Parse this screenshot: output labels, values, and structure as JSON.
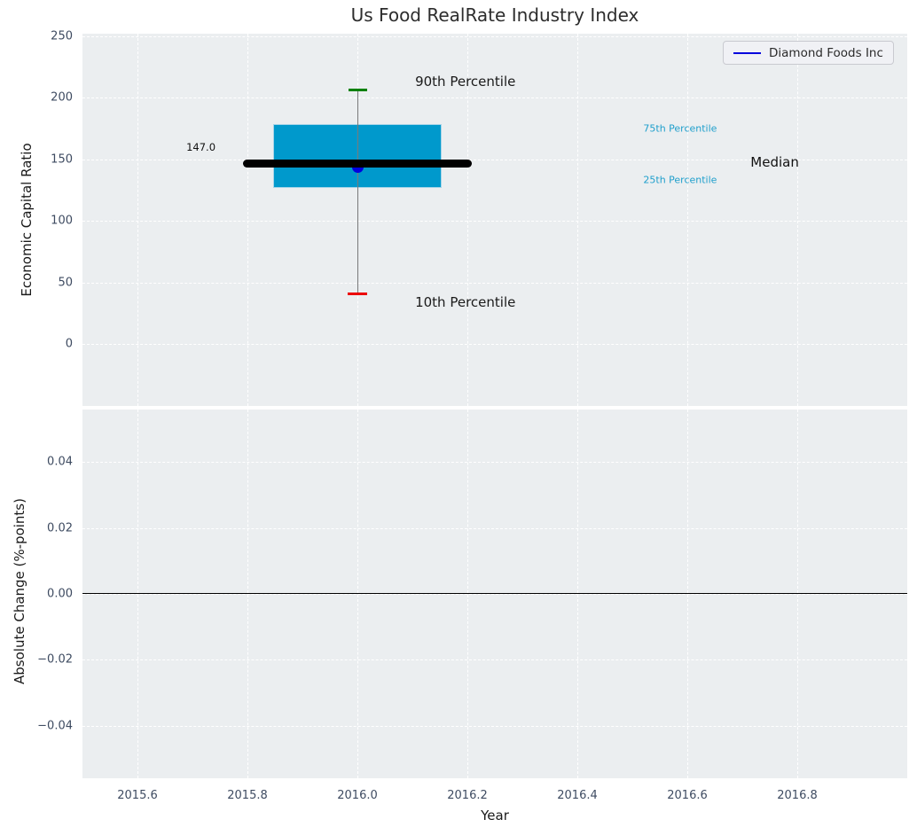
{
  "chart_data": [
    {
      "type": "box",
      "title": "Us Food RealRate Industry Index",
      "xlabel": "Year",
      "ylabel": "Economic Capital Ratio",
      "legend": [
        {
          "label": "Diamond Foods Inc",
          "color": "#0000dd"
        }
      ],
      "legend_position": "upper right",
      "x": 2016.0,
      "box": {
        "p90": 206,
        "p75": 179,
        "median": 147.0,
        "p25": 127,
        "p10": 41
      },
      "company": {
        "name": "Diamond Foods Inc",
        "value": 144
      },
      "xlim": [
        2015.5,
        2017.0
      ],
      "ylim": [
        -50,
        252
      ],
      "xticks": [
        {
          "value": 2015.6,
          "label": "2015.6"
        },
        {
          "value": 2015.8,
          "label": "2015.8"
        },
        {
          "value": 2016.0,
          "label": "2016.0"
        },
        {
          "value": 2016.2,
          "label": "2016.2"
        },
        {
          "value": 2016.4,
          "label": "2016.4"
        },
        {
          "value": 2016.6,
          "label": "2016.6"
        },
        {
          "value": 2016.8,
          "label": "2016.8"
        }
      ],
      "yticks": [
        {
          "value": 0,
          "label": "0"
        },
        {
          "value": 50,
          "label": "50"
        },
        {
          "value": 100,
          "label": "100"
        },
        {
          "value": 150,
          "label": "150"
        },
        {
          "value": 200,
          "label": "200"
        },
        {
          "value": 250,
          "label": "250"
        }
      ],
      "grid": "white-dashed",
      "colors": {
        "box_fill": "#0099cc",
        "box_edge": "#a6d3e8",
        "median_line": "#000000",
        "whisker": "#7a7a7a",
        "cap_90th": "#008000",
        "cap_10th": "#ec0000",
        "company_marker": "#0000e0",
        "plot_bg": "#ebeef0",
        "tick_label": "#3e4b61",
        "percentile_label": "#1f9fcc"
      },
      "annotations": [
        {
          "text": "90th Percentile",
          "x": 2016.105,
          "y": 213,
          "color": "#1a1a1a",
          "size": 15,
          "anchor": "left"
        },
        {
          "text": "10th Percentile",
          "x": 2016.105,
          "y": 34,
          "color": "#1a1a1a",
          "size": 15,
          "anchor": "left"
        },
        {
          "text": "75th Percentile",
          "x": 2016.52,
          "y": 175,
          "color": "#1f9fcc",
          "size": 11,
          "anchor": "left"
        },
        {
          "text": "25th Percentile",
          "x": 2016.52,
          "y": 133,
          "color": "#1f9fcc",
          "size": 11,
          "anchor": "left"
        },
        {
          "text": "Median",
          "x": 2016.715,
          "y": 147.5,
          "color": "#111111",
          "size": 15,
          "anchor": "left"
        },
        {
          "text": "147.0",
          "x": 2015.742,
          "y": 160,
          "color": "#111111",
          "size": 11.5,
          "anchor": "right"
        }
      ]
    },
    {
      "type": "line",
      "ylabel": "Absolute Change (%-points)",
      "ylim": [
        -0.056,
        0.056
      ],
      "yticks": [
        {
          "value": 0.04,
          "label": "0.04"
        },
        {
          "value": 0.02,
          "label": "0.02"
        },
        {
          "value": 0.0,
          "label": "0.00"
        },
        {
          "value": -0.02,
          "label": "−0.02"
        },
        {
          "value": -0.04,
          "label": "−0.04"
        }
      ],
      "zero_line": 0.0,
      "zero_line_color": "#000000",
      "series": []
    }
  ]
}
